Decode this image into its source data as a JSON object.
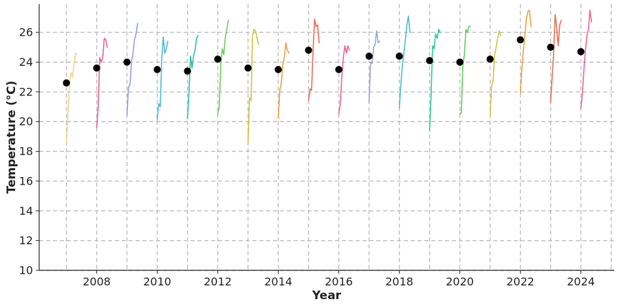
{
  "chart_data": {
    "type": "line",
    "title": "",
    "xlabel": "Year",
    "ylabel": "Temperature (°C)",
    "xlim": [
      2006.1,
      2025.1
    ],
    "ylim": [
      10,
      27.9
    ],
    "x_ticks": [
      2008,
      2010,
      2012,
      2014,
      2016,
      2018,
      2020,
      2022,
      2024
    ],
    "y_ticks": [
      10,
      12,
      14,
      16,
      18,
      20,
      22,
      24,
      26
    ],
    "grid": true,
    "legend": "none",
    "annual_points": {
      "color": "#000000",
      "x": [
        2007,
        2008,
        2009,
        2010,
        2011,
        2012,
        2013,
        2014,
        2015,
        2016,
        2017,
        2018,
        2019,
        2020,
        2021,
        2022,
        2023,
        2024
      ],
      "values": [
        22.6,
        23.6,
        24.0,
        23.5,
        23.4,
        24.2,
        23.6,
        23.5,
        24.8,
        23.5,
        24.4,
        24.4,
        24.1,
        24.0,
        24.2,
        25.5,
        25.0,
        24.7
      ]
    },
    "series": [
      {
        "color": "#f7d08a",
        "x": [
          2007.0,
          2007.05,
          2007.1,
          2007.15,
          2007.2,
          2007.25,
          2007.3,
          2007.35
        ],
        "values": [
          18.6,
          20.5,
          22.5,
          23.3,
          23.0,
          23.8,
          24.6,
          24.5
        ]
      },
      {
        "color": "#e8608a",
        "x": [
          2008.0,
          2008.05,
          2008.1,
          2008.15,
          2008.2,
          2008.25,
          2008.3,
          2008.35
        ],
        "values": [
          19.6,
          21.0,
          24.3,
          24.0,
          24.3,
          25.6,
          25.5,
          25.0
        ]
      },
      {
        "color": "#8f9ee0",
        "x": [
          2009.0,
          2009.05,
          2009.1,
          2009.15,
          2009.2,
          2009.25,
          2009.3,
          2009.35
        ],
        "values": [
          20.4,
          22.3,
          22.5,
          24.0,
          24.6,
          25.5,
          25.9,
          26.6
        ]
      },
      {
        "color": "#4bb8d8",
        "x": [
          2010.0,
          2010.05,
          2010.1,
          2010.15,
          2010.2,
          2010.25,
          2010.3,
          2010.35
        ],
        "values": [
          20.1,
          21.2,
          21.0,
          24.2,
          25.7,
          24.6,
          24.9,
          25.4
        ]
      },
      {
        "color": "#29c0a0",
        "x": [
          2011.0,
          2011.05,
          2011.1,
          2011.15,
          2011.2,
          2011.25,
          2011.3,
          2011.35
        ],
        "values": [
          20.2,
          22.0,
          24.4,
          23.6,
          24.4,
          24.8,
          25.6,
          25.8
        ]
      },
      {
        "color": "#6acb5a",
        "x": [
          2012.0,
          2012.05,
          2012.1,
          2012.15,
          2012.2,
          2012.25,
          2012.3,
          2012.35
        ],
        "values": [
          20.5,
          21.0,
          23.9,
          24.9,
          24.5,
          25.7,
          26.2,
          26.8
        ]
      },
      {
        "color": "#c4c83a",
        "x": [
          2013.0,
          2013.05,
          2013.1,
          2013.15,
          2013.2,
          2013.25,
          2013.3,
          2013.35
        ],
        "values": [
          18.5,
          21.6,
          21.4,
          25.8,
          26.2,
          26.1,
          25.6,
          25.2
        ]
      },
      {
        "color": "#e8a040",
        "x": [
          2014.0,
          2014.05,
          2014.1,
          2014.15,
          2014.2,
          2014.25,
          2014.3,
          2014.35
        ],
        "values": [
          20.2,
          22.1,
          22.6,
          23.8,
          24.3,
          25.3,
          24.8,
          24.6
        ]
      },
      {
        "color": "#ec6a50",
        "x": [
          2015.0,
          2015.05,
          2015.1,
          2015.15,
          2015.2,
          2015.25,
          2015.3,
          2015.35
        ],
        "values": [
          21.4,
          22.2,
          22.1,
          24.8,
          26.9,
          26.4,
          26.5,
          25.3
        ]
      },
      {
        "color": "#ee6098",
        "x": [
          2016.0,
          2016.05,
          2016.1,
          2016.15,
          2016.2,
          2016.25,
          2016.3,
          2016.35
        ],
        "values": [
          20.5,
          21.2,
          23.0,
          24.3,
          25.1,
          24.6,
          25.1,
          24.8
        ]
      },
      {
        "color": "#9aa0e0",
        "x": [
          2017.0,
          2017.05,
          2017.1,
          2017.15,
          2017.2,
          2017.25,
          2017.3,
          2017.35
        ],
        "values": [
          21.3,
          24.0,
          23.9,
          25.0,
          25.2,
          26.1,
          25.3,
          25.4
        ]
      },
      {
        "color": "#45c0d0",
        "x": [
          2018.0,
          2018.05,
          2018.1,
          2018.15,
          2018.2,
          2018.25,
          2018.3,
          2018.35
        ],
        "values": [
          20.9,
          22.4,
          23.8,
          24.6,
          25.5,
          26.5,
          27.1,
          26.0
        ]
      },
      {
        "color": "#28c89a",
        "x": [
          2019.0,
          2019.05,
          2019.1,
          2019.15,
          2019.2,
          2019.25,
          2019.3,
          2019.35
        ],
        "values": [
          19.4,
          21.8,
          25.1,
          24.9,
          25.9,
          25.6,
          26.2,
          26.0
        ]
      },
      {
        "color": "#5ccd5a",
        "x": [
          2020.0,
          2020.05,
          2020.1,
          2020.15,
          2020.2,
          2020.25,
          2020.3,
          2020.35
        ],
        "values": [
          20.5,
          20.6,
          23.8,
          24.5,
          26.2,
          26.0,
          26.4,
          26.4
        ]
      },
      {
        "color": "#c8c838",
        "x": [
          2021.0,
          2021.05,
          2021.1,
          2021.15,
          2021.2,
          2021.25,
          2021.3,
          2021.35
        ],
        "values": [
          20.3,
          22.4,
          22.8,
          24.5,
          25.0,
          25.6,
          26.1,
          25.8
        ]
      },
      {
        "color": "#eba038",
        "x": [
          2022.0,
          2022.05,
          2022.1,
          2022.15,
          2022.2,
          2022.25,
          2022.3,
          2022.35
        ],
        "values": [
          21.9,
          23.5,
          24.8,
          25.8,
          26.9,
          27.4,
          27.5,
          26.4
        ]
      },
      {
        "color": "#ec6a50",
        "x": [
          2023.0,
          2023.05,
          2023.1,
          2023.15,
          2023.2,
          2023.25,
          2023.3,
          2023.35
        ],
        "values": [
          21.3,
          23.0,
          24.6,
          27.2,
          26.3,
          25.1,
          26.5,
          26.8
        ]
      },
      {
        "color": "#ee6094",
        "x": [
          2024.0,
          2024.05,
          2024.1,
          2024.15,
          2024.2,
          2024.25,
          2024.3,
          2024.35
        ],
        "values": [
          20.9,
          21.9,
          23.5,
          24.8,
          25.8,
          26.2,
          27.5,
          26.7
        ]
      }
    ]
  }
}
